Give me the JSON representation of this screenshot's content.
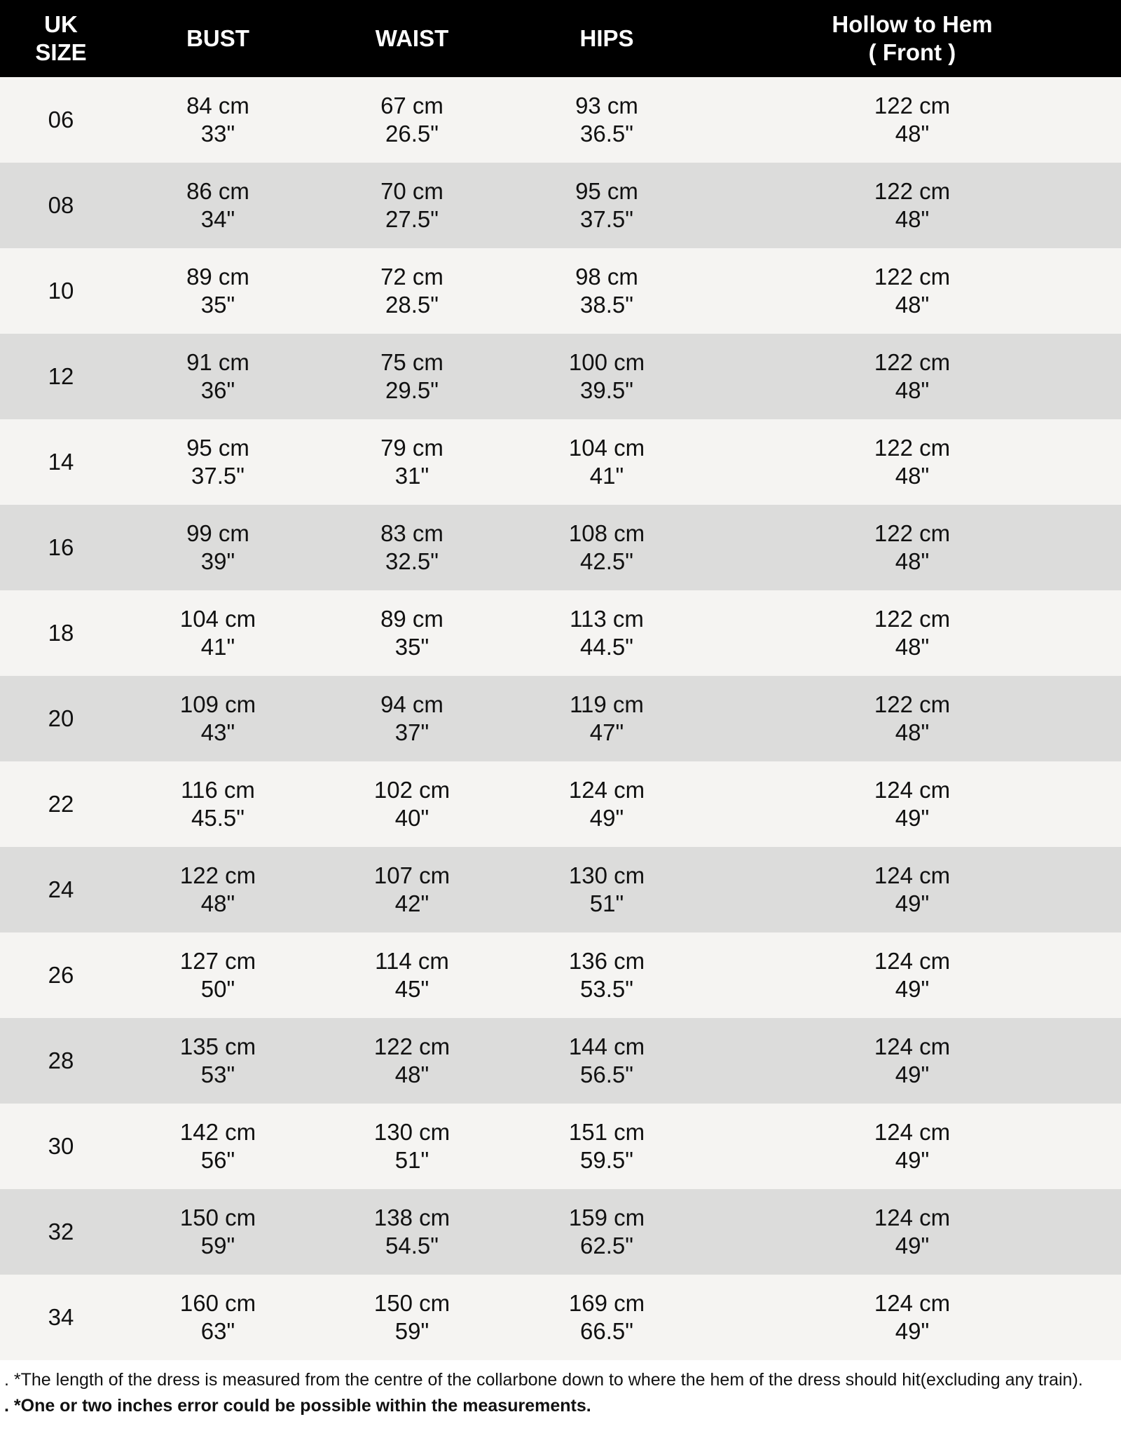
{
  "header": {
    "size": [
      "UK",
      "SIZE"
    ],
    "bust": "BUST",
    "waist": "WAIST",
    "hips": "HIPS",
    "hollow": [
      "Hollow to Hem",
      "( Front )"
    ]
  },
  "rows": [
    {
      "size": "06",
      "bust": [
        "84 cm",
        "33\""
      ],
      "waist": [
        "67 cm",
        "26.5\""
      ],
      "hips": [
        "93 cm",
        "36.5\""
      ],
      "hollow": [
        "122 cm",
        "48\""
      ]
    },
    {
      "size": "08",
      "bust": [
        "86 cm",
        "34\""
      ],
      "waist": [
        "70 cm",
        "27.5\""
      ],
      "hips": [
        "95 cm",
        "37.5\""
      ],
      "hollow": [
        "122 cm",
        "48\""
      ]
    },
    {
      "size": "10",
      "bust": [
        "89 cm",
        "35\""
      ],
      "waist": [
        "72 cm",
        "28.5\""
      ],
      "hips": [
        "98 cm",
        "38.5\""
      ],
      "hollow": [
        "122 cm",
        "48\""
      ]
    },
    {
      "size": "12",
      "bust": [
        "91 cm",
        "36\""
      ],
      "waist": [
        "75 cm",
        "29.5\""
      ],
      "hips": [
        "100 cm",
        "39.5\""
      ],
      "hollow": [
        "122 cm",
        "48\""
      ]
    },
    {
      "size": "14",
      "bust": [
        "95 cm",
        "37.5\""
      ],
      "waist": [
        "79 cm",
        "31\""
      ],
      "hips": [
        "104 cm",
        "41\""
      ],
      "hollow": [
        "122 cm",
        "48\""
      ]
    },
    {
      "size": "16",
      "bust": [
        "99 cm",
        "39\""
      ],
      "waist": [
        "83 cm",
        "32.5\""
      ],
      "hips": [
        "108 cm",
        "42.5\""
      ],
      "hollow": [
        "122 cm",
        "48\""
      ]
    },
    {
      "size": "18",
      "bust": [
        "104 cm",
        "41\""
      ],
      "waist": [
        "89 cm",
        "35\""
      ],
      "hips": [
        "113 cm",
        "44.5\""
      ],
      "hollow": [
        "122 cm",
        "48\""
      ]
    },
    {
      "size": "20",
      "bust": [
        "109 cm",
        "43\""
      ],
      "waist": [
        "94 cm",
        "37\""
      ],
      "hips": [
        "119 cm",
        "47\""
      ],
      "hollow": [
        "122 cm",
        "48\""
      ]
    },
    {
      "size": "22",
      "bust": [
        "116 cm",
        "45.5\""
      ],
      "waist": [
        "102 cm",
        "40\""
      ],
      "hips": [
        "124 cm",
        "49\""
      ],
      "hollow": [
        "124 cm",
        "49\""
      ]
    },
    {
      "size": "24",
      "bust": [
        "122 cm",
        "48\""
      ],
      "waist": [
        "107 cm",
        "42\""
      ],
      "hips": [
        "130 cm",
        "51\""
      ],
      "hollow": [
        "124 cm",
        "49\""
      ]
    },
    {
      "size": "26",
      "bust": [
        "127 cm",
        "50\""
      ],
      "waist": [
        "114 cm",
        "45\""
      ],
      "hips": [
        "136 cm",
        "53.5\""
      ],
      "hollow": [
        "124 cm",
        "49\""
      ]
    },
    {
      "size": "28",
      "bust": [
        "135 cm",
        "53\""
      ],
      "waist": [
        "122 cm",
        "48\""
      ],
      "hips": [
        "144 cm",
        "56.5\""
      ],
      "hollow": [
        "124 cm",
        "49\""
      ]
    },
    {
      "size": "30",
      "bust": [
        "142 cm",
        "56\""
      ],
      "waist": [
        "130 cm",
        "51\""
      ],
      "hips": [
        "151 cm",
        "59.5\""
      ],
      "hollow": [
        "124 cm",
        "49\""
      ]
    },
    {
      "size": "32",
      "bust": [
        "150 cm",
        "59\""
      ],
      "waist": [
        "138 cm",
        "54.5\""
      ],
      "hips": [
        "159 cm",
        "62.5\""
      ],
      "hollow": [
        "124 cm",
        "49\""
      ]
    },
    {
      "size": "34",
      "bust": [
        "160 cm",
        "63\""
      ],
      "waist": [
        "150 cm",
        "59\""
      ],
      "hips": [
        "169 cm",
        "66.5\""
      ],
      "hollow": [
        "124 cm",
        "49\""
      ]
    }
  ],
  "notes": {
    "length": ". *The length of the dress is measured from the centre of the collarbone down to where the hem of the dress should hit(excluding any train).",
    "error": ". *One or two inches error could be possible within the measurements."
  }
}
